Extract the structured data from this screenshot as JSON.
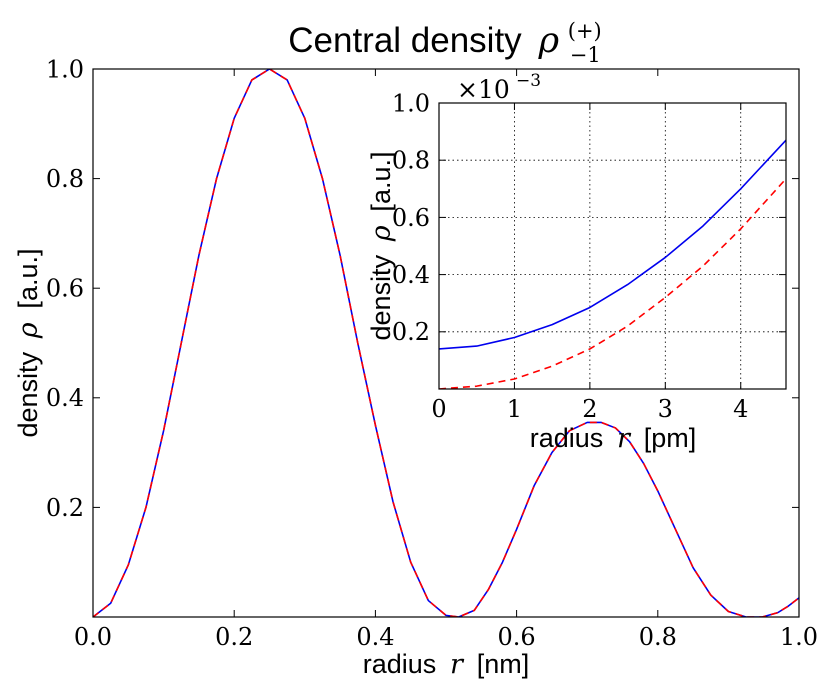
{
  "chart_data": [
    {
      "id": "main",
      "type": "line",
      "title": "Central density",
      "title_symbol": "ρ",
      "title_superscript": "(+)",
      "title_subscript": "−1",
      "xlabel": "radius",
      "xlabel_symbol": "r",
      "xlabel_unit": "[nm]",
      "ylabel": "density",
      "ylabel_symbol": "ρ",
      "ylabel_unit": "[a.u.]",
      "xlim": [
        0.0,
        1.0
      ],
      "ylim": [
        0.0,
        1.0
      ],
      "xticks": [
        0.0,
        0.2,
        0.4,
        0.6,
        0.8,
        1.0
      ],
      "xtick_labels": [
        "0.0",
        "0.2",
        "0.4",
        "0.6",
        "0.8",
        "1.0"
      ],
      "yticks": [
        0.2,
        0.4,
        0.6,
        0.8,
        1.0
      ],
      "ytick_labels": [
        "0.2",
        "0.4",
        "0.6",
        "0.8",
        "1.0"
      ],
      "grid": false,
      "series": [
        {
          "name": "solid",
          "color": "#0000ee",
          "dash": "solid",
          "x": [
            0.0,
            0.025,
            0.05,
            0.075,
            0.1,
            0.125,
            0.15,
            0.175,
            0.2,
            0.225,
            0.25,
            0.275,
            0.3,
            0.325,
            0.35,
            0.375,
            0.4,
            0.425,
            0.45,
            0.475,
            0.5,
            0.518,
            0.54,
            0.56,
            0.58,
            0.6,
            0.625,
            0.65,
            0.675,
            0.7,
            0.72,
            0.74,
            0.76,
            0.78,
            0.8,
            0.825,
            0.85,
            0.875,
            0.9,
            0.925,
            0.948,
            0.97,
            0.985,
            1.0
          ],
          "y": [
            0.0,
            0.025,
            0.095,
            0.2,
            0.34,
            0.5,
            0.66,
            0.8,
            0.91,
            0.98,
            1.0,
            0.98,
            0.91,
            0.8,
            0.66,
            0.5,
            0.35,
            0.21,
            0.1,
            0.03,
            0.003,
            0.0,
            0.012,
            0.05,
            0.1,
            0.16,
            0.24,
            0.3,
            0.34,
            0.355,
            0.355,
            0.345,
            0.32,
            0.28,
            0.23,
            0.16,
            0.09,
            0.04,
            0.01,
            0.0,
            0.0,
            0.008,
            0.02,
            0.035
          ]
        },
        {
          "name": "dashed",
          "color": "#ff0000",
          "dash": "dashed",
          "x": [
            0.0,
            0.025,
            0.05,
            0.075,
            0.1,
            0.125,
            0.15,
            0.175,
            0.2,
            0.225,
            0.25,
            0.275,
            0.3,
            0.325,
            0.35,
            0.375,
            0.4,
            0.425,
            0.45,
            0.475,
            0.5,
            0.518,
            0.54,
            0.56,
            0.58,
            0.6,
            0.625,
            0.65,
            0.675,
            0.7,
            0.72,
            0.74,
            0.76,
            0.78,
            0.8,
            0.825,
            0.85,
            0.875,
            0.9,
            0.925,
            0.948,
            0.97,
            0.985,
            1.0
          ],
          "y": [
            0.0,
            0.025,
            0.095,
            0.2,
            0.34,
            0.5,
            0.66,
            0.8,
            0.91,
            0.98,
            1.0,
            0.98,
            0.91,
            0.8,
            0.66,
            0.5,
            0.35,
            0.21,
            0.1,
            0.03,
            0.003,
            0.0,
            0.012,
            0.05,
            0.1,
            0.16,
            0.24,
            0.3,
            0.34,
            0.355,
            0.355,
            0.345,
            0.32,
            0.28,
            0.23,
            0.16,
            0.09,
            0.04,
            0.01,
            0.0,
            0.0,
            0.008,
            0.02,
            0.035
          ]
        }
      ]
    },
    {
      "id": "inset",
      "type": "line",
      "xlabel": "radius",
      "xlabel_symbol": "r",
      "xlabel_unit": "[pm]",
      "ylabel": "density",
      "ylabel_symbol": "ρ",
      "ylabel_unit": "[a.u.]",
      "scale_label": "×10",
      "scale_exponent": "−3",
      "xlim": [
        0,
        4.6
      ],
      "ylim": [
        0.0,
        1.0
      ],
      "xticks": [
        0,
        1,
        2,
        3,
        4
      ],
      "xtick_labels": [
        "0",
        "1",
        "2",
        "3",
        "4"
      ],
      "yticks": [
        0.2,
        0.4,
        0.6,
        0.8,
        1.0
      ],
      "ytick_labels": [
        "0.2",
        "0.4",
        "0.6",
        "0.8",
        "1.0"
      ],
      "grid": true,
      "series": [
        {
          "name": "solid",
          "color": "#0000ee",
          "dash": "solid",
          "x": [
            0,
            0.5,
            1.0,
            1.5,
            2.0,
            2.5,
            3.0,
            3.5,
            4.0,
            4.6
          ],
          "y": [
            0.14,
            0.15,
            0.18,
            0.225,
            0.285,
            0.365,
            0.46,
            0.57,
            0.7,
            0.87
          ]
        },
        {
          "name": "dashed",
          "color": "#ff0000",
          "dash": "dashed",
          "x": [
            0,
            0.5,
            1.0,
            1.5,
            2.0,
            2.5,
            3.0,
            3.5,
            4.0,
            4.6
          ],
          "y": [
            0.0,
            0.01,
            0.035,
            0.08,
            0.14,
            0.22,
            0.32,
            0.43,
            0.56,
            0.735
          ]
        }
      ]
    }
  ]
}
